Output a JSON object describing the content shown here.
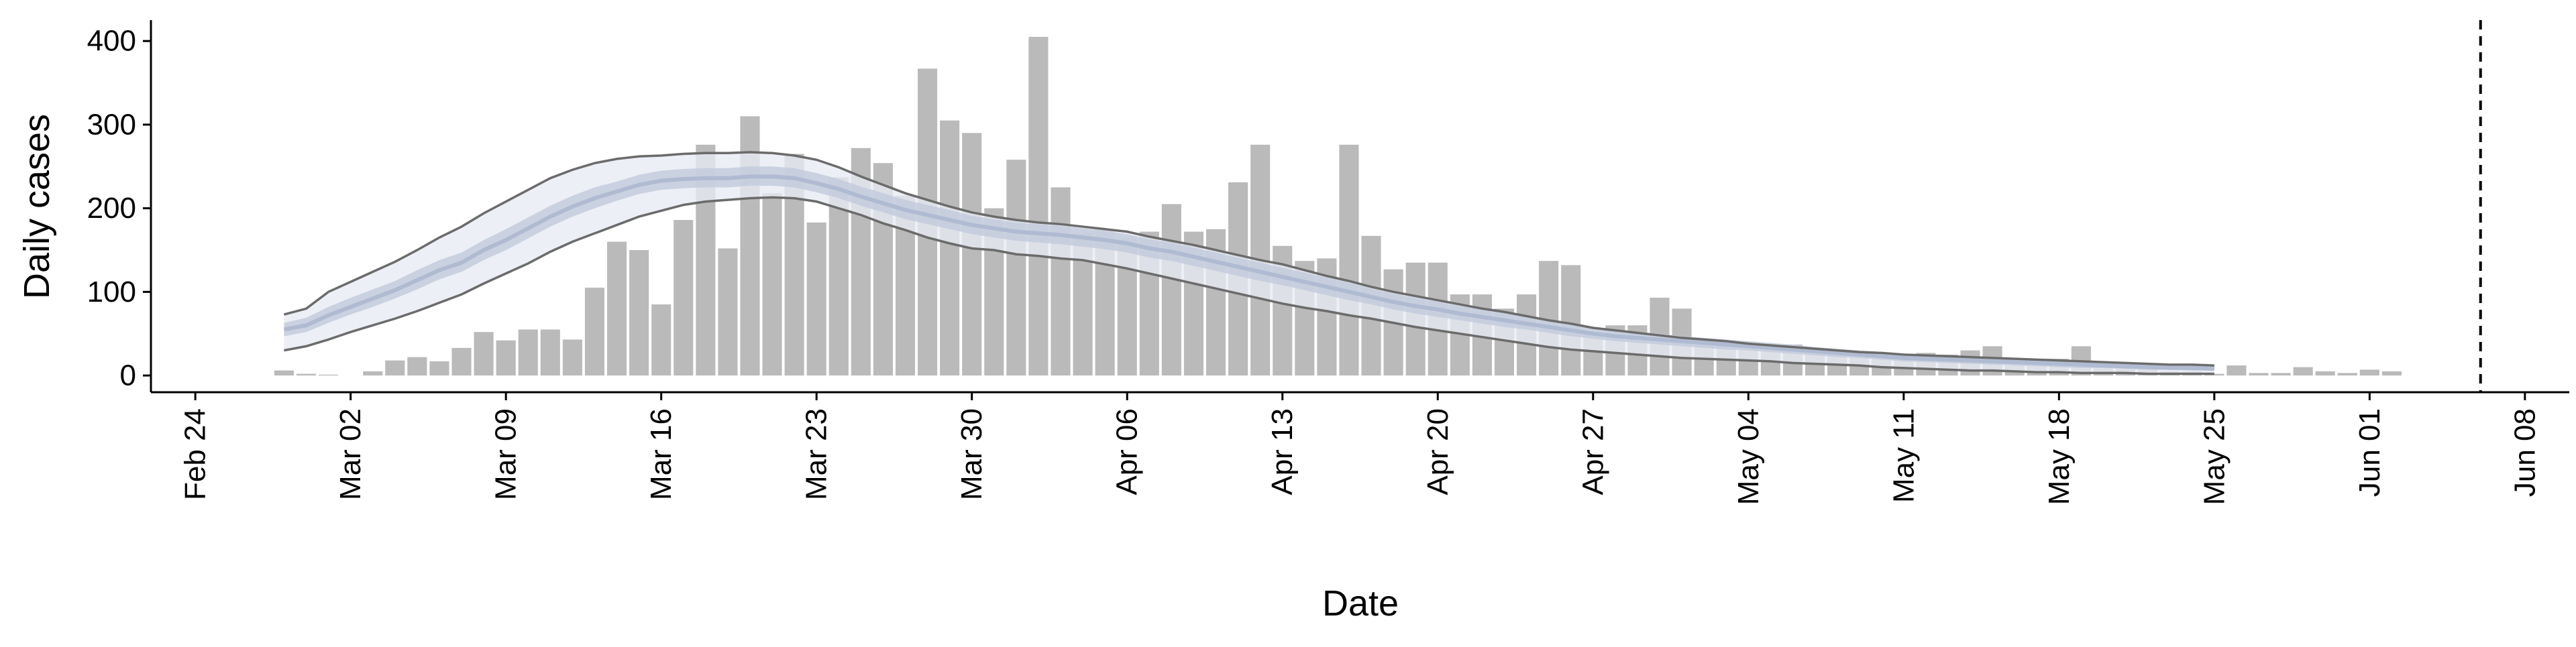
{
  "chart_data": {
    "type": "bar",
    "xlabel": "Date",
    "ylabel": "Daily cases",
    "x_start": "2020-02-28",
    "xlim": [
      "2020-02-22",
      "2020-06-10"
    ],
    "ylim": [
      -20,
      425
    ],
    "y_ticks": [
      0,
      100,
      200,
      300,
      400
    ],
    "x_ticks": [
      {
        "date": "2020-02-24",
        "label": "Feb 24"
      },
      {
        "date": "2020-03-02",
        "label": "Mar 02"
      },
      {
        "date": "2020-03-09",
        "label": "Mar 09"
      },
      {
        "date": "2020-03-16",
        "label": "Mar 16"
      },
      {
        "date": "2020-03-23",
        "label": "Mar 23"
      },
      {
        "date": "2020-03-30",
        "label": "Mar 30"
      },
      {
        "date": "2020-04-06",
        "label": "Apr 06"
      },
      {
        "date": "2020-04-13",
        "label": "Apr 13"
      },
      {
        "date": "2020-04-20",
        "label": "Apr 20"
      },
      {
        "date": "2020-04-27",
        "label": "Apr 27"
      },
      {
        "date": "2020-05-04",
        "label": "May 04"
      },
      {
        "date": "2020-05-11",
        "label": "May 11"
      },
      {
        "date": "2020-05-18",
        "label": "May 18"
      },
      {
        "date": "2020-05-25",
        "label": "May 25"
      },
      {
        "date": "2020-06-01",
        "label": "Jun 01"
      },
      {
        "date": "2020-06-08",
        "label": "Jun 08"
      }
    ],
    "daily_cases": [
      6,
      2,
      1,
      0,
      5,
      18,
      22,
      17,
      33,
      52,
      42,
      55,
      55,
      43,
      105,
      160,
      150,
      85,
      186,
      276,
      152,
      310,
      218,
      265,
      183,
      237,
      272,
      254,
      215,
      367,
      305,
      290,
      200,
      258,
      405,
      225,
      170,
      175,
      165,
      172,
      205,
      172,
      175,
      231,
      276,
      155,
      137,
      140,
      276,
      167,
      127,
      135,
      135,
      97,
      97,
      80,
      97,
      137,
      132,
      50,
      60,
      60,
      93,
      80,
      37,
      37,
      32,
      30,
      37,
      30,
      28,
      22,
      20,
      25,
      27,
      25,
      30,
      35,
      12,
      12,
      20,
      35,
      15,
      10,
      12,
      5,
      5,
      2,
      12,
      3,
      3,
      10,
      5,
      3,
      7,
      5
    ],
    "series_count": 96,
    "estimate_end_index": 87,
    "estimate": {
      "median": [
        55,
        60,
        72,
        82,
        92,
        102,
        114,
        126,
        135,
        150,
        162,
        176,
        190,
        202,
        212,
        220,
        228,
        233,
        235,
        236,
        236,
        238,
        238,
        236,
        230,
        223,
        214,
        206,
        198,
        192,
        186,
        180,
        176,
        172,
        170,
        168,
        165,
        162,
        158,
        152,
        148,
        142,
        136,
        130,
        124,
        118,
        112,
        106,
        100,
        94,
        88,
        83,
        79,
        74,
        70,
        66,
        62,
        58,
        54,
        50,
        47,
        45,
        43,
        41,
        39,
        37,
        35,
        33,
        31,
        29,
        27,
        25,
        23,
        21,
        20,
        19,
        18,
        17,
        16,
        15,
        14,
        13,
        12,
        11,
        10,
        9,
        9,
        8
      ],
      "lower_50": [
        47,
        52,
        63,
        73,
        82,
        92,
        103,
        115,
        124,
        138,
        150,
        164,
        178,
        190,
        200,
        209,
        217,
        222,
        224,
        225,
        225,
        227,
        227,
        225,
        219,
        212,
        203,
        195,
        187,
        181,
        175,
        169,
        165,
        161,
        159,
        157,
        154,
        151,
        147,
        141,
        137,
        131,
        125,
        119,
        113,
        108,
        102,
        96,
        90,
        85,
        79,
        74,
        70,
        66,
        62,
        58,
        55,
        51,
        47,
        44,
        41,
        39,
        37,
        35,
        33,
        31,
        30,
        28,
        26,
        24,
        22,
        21,
        19,
        17,
        16,
        15,
        14,
        13,
        12,
        11,
        10,
        9,
        9,
        8,
        7,
        7,
        6,
        6
      ],
      "upper_50": [
        63,
        69,
        82,
        93,
        103,
        113,
        126,
        138,
        147,
        162,
        175,
        189,
        203,
        215,
        225,
        232,
        240,
        245,
        247,
        248,
        248,
        250,
        250,
        248,
        242,
        235,
        226,
        218,
        210,
        204,
        198,
        191,
        187,
        183,
        181,
        179,
        176,
        173,
        169,
        163,
        159,
        153,
        147,
        141,
        135,
        129,
        123,
        117,
        111,
        104,
        98,
        93,
        88,
        83,
        79,
        75,
        70,
        66,
        62,
        58,
        54,
        52,
        50,
        47,
        45,
        43,
        41,
        39,
        37,
        34,
        32,
        30,
        28,
        26,
        25,
        23,
        22,
        21,
        20,
        19,
        18,
        17,
        16,
        15,
        13,
        12,
        12,
        11
      ],
      "lower_90": [
        30,
        35,
        43,
        52,
        60,
        68,
        77,
        87,
        97,
        110,
        122,
        134,
        148,
        160,
        170,
        180,
        190,
        197,
        204,
        208,
        210,
        212,
        213,
        212,
        208,
        200,
        192,
        182,
        174,
        165,
        158,
        152,
        150,
        145,
        143,
        140,
        138,
        133,
        128,
        122,
        116,
        110,
        104,
        98,
        92,
        86,
        81,
        77,
        72,
        68,
        63,
        58,
        54,
        50,
        46,
        42,
        38,
        34,
        31,
        29,
        27,
        25,
        23,
        21,
        20,
        19,
        18,
        17,
        15,
        14,
        13,
        12,
        10,
        9,
        8,
        7,
        6,
        6,
        5,
        4,
        4,
        3,
        3,
        3,
        2,
        2,
        2,
        2
      ],
      "upper_90": [
        73,
        80,
        100,
        112,
        124,
        136,
        150,
        165,
        178,
        194,
        208,
        222,
        236,
        246,
        254,
        259,
        262,
        263,
        265,
        266,
        266,
        267,
        266,
        263,
        258,
        249,
        238,
        228,
        218,
        210,
        202,
        195,
        190,
        186,
        183,
        181,
        178,
        175,
        172,
        166,
        161,
        156,
        150,
        144,
        138,
        133,
        126,
        119,
        113,
        106,
        100,
        95,
        90,
        85,
        80,
        76,
        71,
        66,
        62,
        57,
        54,
        51,
        48,
        45,
        43,
        41,
        38,
        36,
        34,
        32,
        30,
        28,
        27,
        25,
        24,
        23,
        22,
        21,
        20,
        19,
        18,
        17,
        16,
        15,
        14,
        13,
        13,
        12
      ]
    },
    "reference_line_date": "2020-06-06",
    "colors": {
      "bar": "#bababa",
      "band_90": "#e8ebf4",
      "band_50": "#c3cbdd",
      "median": "#a5b2cc",
      "bound_line": "#6b6b6b",
      "axis": "#000000",
      "text": "#000000"
    }
  }
}
